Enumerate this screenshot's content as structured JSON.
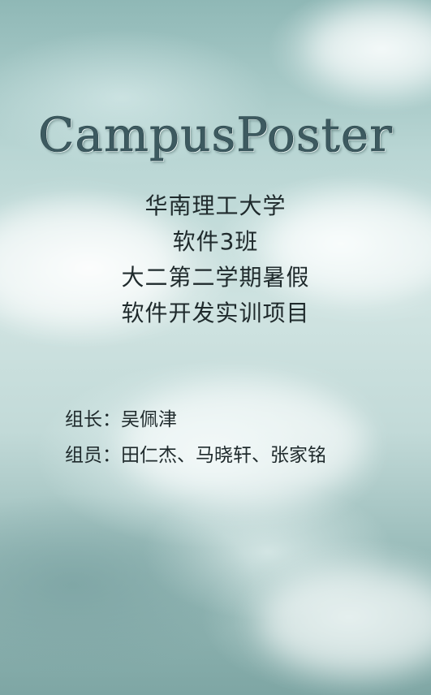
{
  "app": {
    "title": "CampusPoster"
  },
  "intro": {
    "lines": [
      "华南理工大学",
      "软件3班",
      "大二第二学期暑假",
      "软件开发实训项目"
    ]
  },
  "team": {
    "leader_label": "组长：",
    "leader_name": "吴佩津",
    "members_label": "组员：",
    "members_names": "田仁杰、马晓轩、张家铭"
  },
  "colors": {
    "title": "#3d5a60",
    "text": "#1f2a2c",
    "sky_top": "#8fb8b6",
    "sky_bottom": "#7ea6a4"
  },
  "background": {
    "image": "cloudy-sky"
  }
}
